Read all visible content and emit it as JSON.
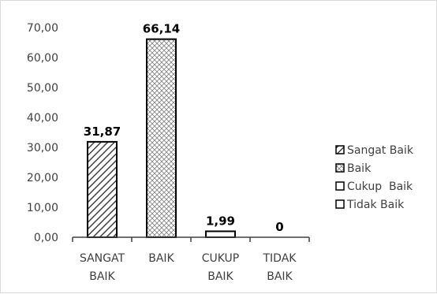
{
  "chart_data": {
    "type": "bar",
    "categories": [
      [
        "SANGAT",
        "BAIK"
      ],
      [
        "BAIK"
      ],
      [
        "CUKUP",
        "BAIK"
      ],
      [
        "TIDAK",
        "BAIK"
      ]
    ],
    "values": [
      31.87,
      66.14,
      1.99,
      0
    ],
    "data_labels": [
      "31,87",
      "66,14",
      "1,99",
      "0"
    ],
    "y_ticks": [
      "0,00",
      "10,00",
      "20,00",
      "30,00",
      "40,00",
      "50,00",
      "60,00",
      "70,00"
    ],
    "ylim": [
      0,
      70
    ],
    "grid": false,
    "legend": {
      "placement": "right",
      "entries": [
        "Sangat Baik",
        "Baik",
        "Cukup  Baik",
        "Tidak Baik"
      ]
    },
    "fills": [
      "diagonal-hatch",
      "cross-hatch",
      "none",
      "none"
    ],
    "colors": {
      "axis": "#404040",
      "bar_stroke": "#000000",
      "hatch": "#404040",
      "text": "#404040"
    }
  }
}
